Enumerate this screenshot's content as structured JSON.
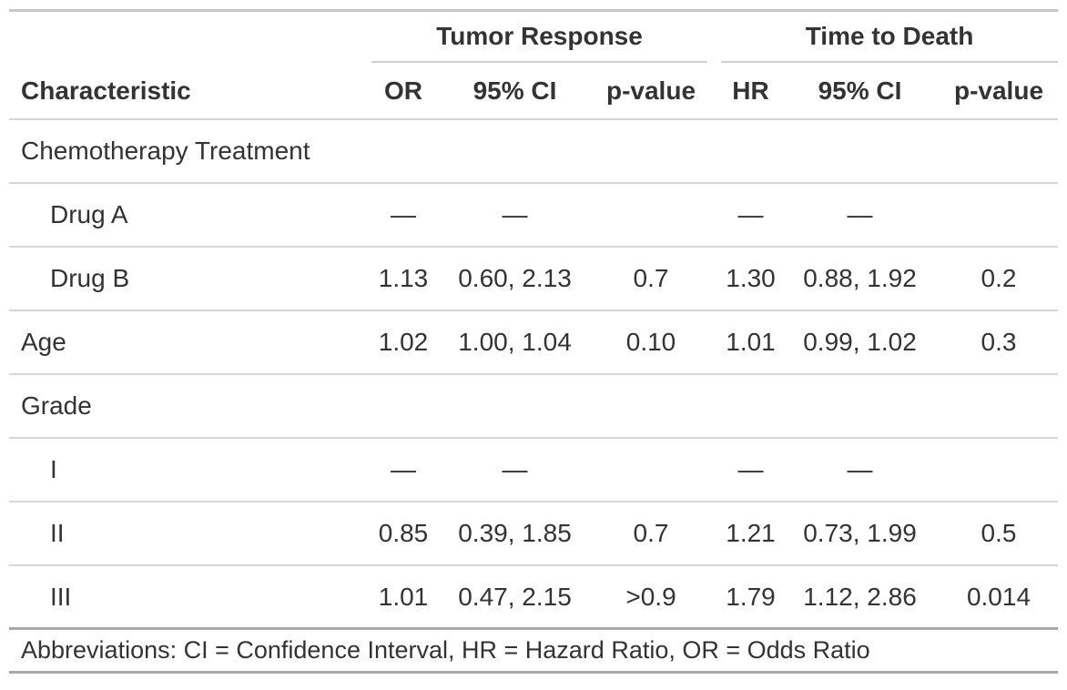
{
  "table": {
    "spanners": [
      {
        "label": "Tumor Response"
      },
      {
        "label": "Time to Death"
      }
    ],
    "columns": {
      "characteristic": "Characteristic",
      "tr_or": "OR",
      "tr_ci": "95% CI",
      "tr_p": "p-value",
      "td_hr": "HR",
      "td_ci": "95% CI",
      "td_p": "p-value"
    },
    "rows": [
      {
        "label": "Chemotherapy Treatment",
        "indent": false,
        "tr_or": "",
        "tr_ci": "",
        "tr_p": "",
        "td_hr": "",
        "td_ci": "",
        "td_p": ""
      },
      {
        "label": "Drug A",
        "indent": true,
        "tr_or": "—",
        "tr_ci": "—",
        "tr_p": "",
        "td_hr": "—",
        "td_ci": "—",
        "td_p": ""
      },
      {
        "label": "Drug B",
        "indent": true,
        "tr_or": "1.13",
        "tr_ci": "0.60, 2.13",
        "tr_p": "0.7",
        "td_hr": "1.30",
        "td_ci": "0.88, 1.92",
        "td_p": "0.2"
      },
      {
        "label": "Age",
        "indent": false,
        "tr_or": "1.02",
        "tr_ci": "1.00, 1.04",
        "tr_p": "0.10",
        "td_hr": "1.01",
        "td_ci": "0.99, 1.02",
        "td_p": "0.3"
      },
      {
        "label": "Grade",
        "indent": false,
        "tr_or": "",
        "tr_ci": "",
        "tr_p": "",
        "td_hr": "",
        "td_ci": "",
        "td_p": ""
      },
      {
        "label": "I",
        "indent": true,
        "tr_or": "—",
        "tr_ci": "—",
        "tr_p": "",
        "td_hr": "—",
        "td_ci": "—",
        "td_p": ""
      },
      {
        "label": "II",
        "indent": true,
        "tr_or": "0.85",
        "tr_ci": "0.39, 1.85",
        "tr_p": "0.7",
        "td_hr": "1.21",
        "td_ci": "0.73, 1.99",
        "td_p": "0.5"
      },
      {
        "label": "III",
        "indent": true,
        "tr_or": "1.01",
        "tr_ci": "0.47, 2.15",
        "tr_p": ">0.9",
        "td_hr": "1.79",
        "td_ci": "1.12, 2.86",
        "td_p": "0.014"
      }
    ],
    "footer": "Abbreviations: CI = Confidence Interval, HR = Hazard Ratio, OR = Odds Ratio",
    "colors": {
      "text": "#333333",
      "row_separator": "#d6d6d6",
      "top_border": "#c8c8c8",
      "outer_border": "#a9a9a9",
      "background": "#ffffff"
    }
  }
}
